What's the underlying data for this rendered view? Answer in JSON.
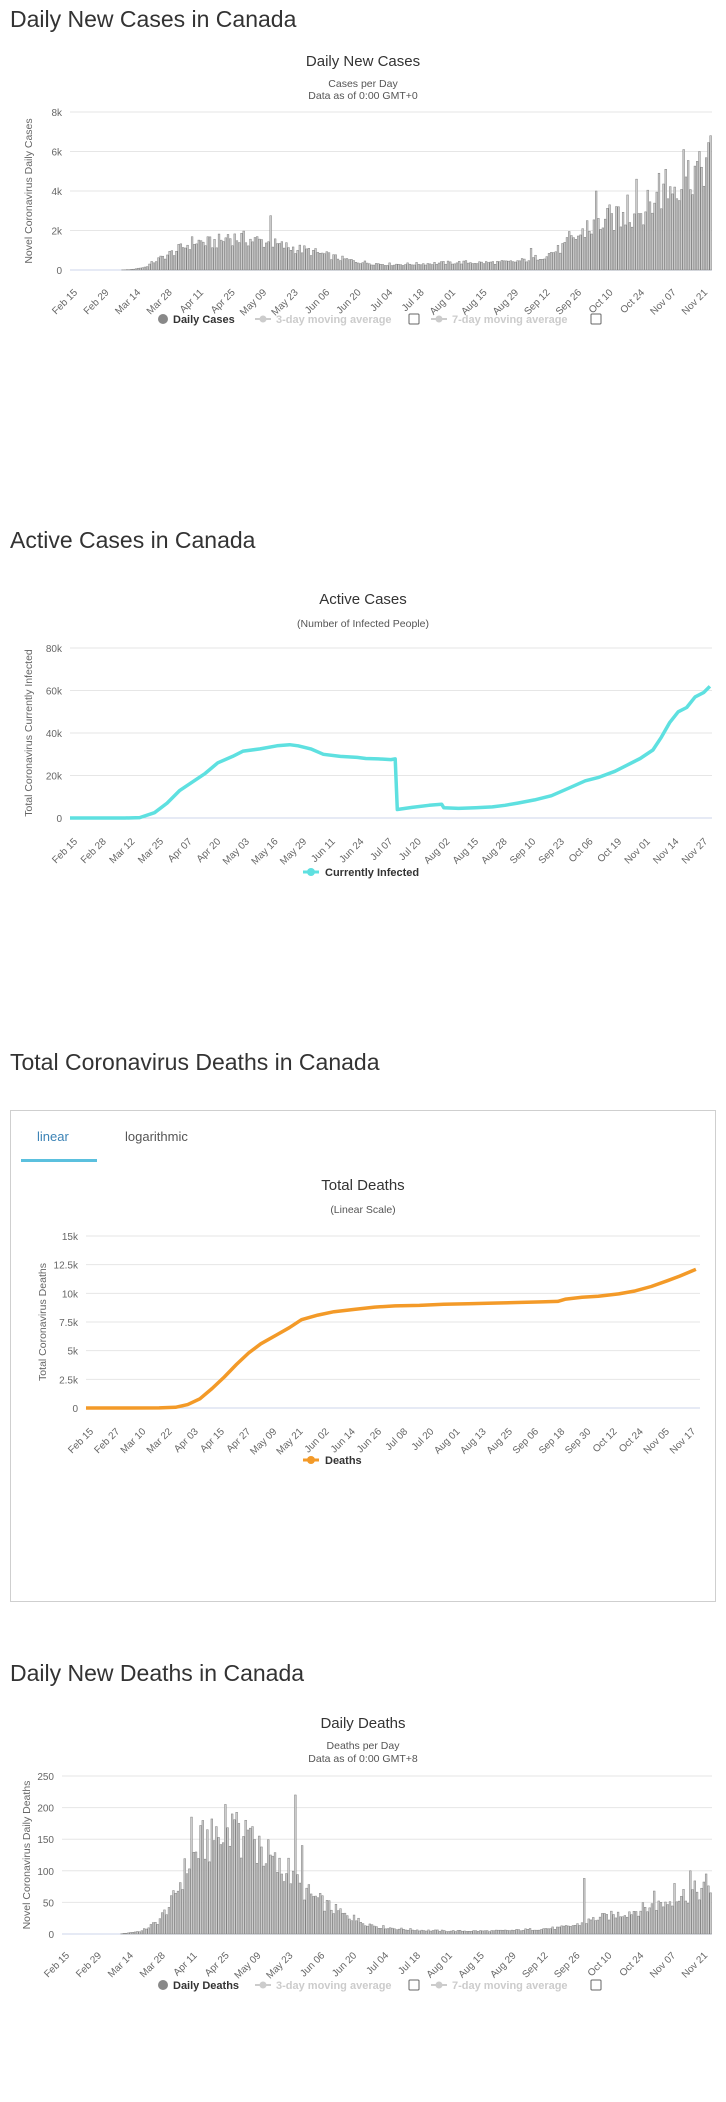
{
  "sections": [
    {
      "title": "Daily New Cases in Canada"
    },
    {
      "title": "Active Cases in Canada"
    },
    {
      "title": "Total Coronavirus Deaths in Canada"
    },
    {
      "title": "Daily New Deaths in Canada"
    }
  ],
  "tabs": {
    "linear": "linear",
    "logarithmic": "logarithmic"
  },
  "legend": {
    "daily_cases": "Daily Cases",
    "ma3": "3-day moving average",
    "ma7": "7-day moving average",
    "currently_infected": "Currently Infected",
    "deaths": "Deaths",
    "daily_deaths": "Daily Deaths"
  },
  "colors": {
    "bar_fill": "#cccccc",
    "bar_stroke": "#7f7f7f",
    "active_line": "#5ee0e0",
    "deaths_line": "#f39a28",
    "grid": "#e6e6e6",
    "tab_accent": "#5bc0de"
  },
  "chart_data": [
    {
      "type": "bar",
      "title": "Daily New Cases",
      "subtitle": "Cases per Day",
      "subtitle2": "Data as of 0:00 GMT+0",
      "ylabel": "Novel Coronavirus Daily Cases",
      "ylim": [
        0,
        8000
      ],
      "yticks": [
        0,
        2000,
        4000,
        6000,
        8000
      ],
      "ytick_labels": [
        "0",
        "2k",
        "4k",
        "6k",
        "8k"
      ],
      "xtick_labels": [
        "Feb 15",
        "Feb 29",
        "Mar 14",
        "Mar 28",
        "Apr 11",
        "Apr 25",
        "May 09",
        "May 23",
        "Jun 06",
        "Jun 20",
        "Jul 04",
        "Jul 18",
        "Aug 01",
        "Aug 15",
        "Aug 29",
        "Sep 12",
        "Sep 26",
        "Oct 10",
        "Oct 24",
        "Nov 07",
        "Nov 21"
      ],
      "keypoints": [
        [
          0,
          0
        ],
        [
          22,
          0
        ],
        [
          27,
          30
        ],
        [
          33,
          150
        ],
        [
          38,
          500
        ],
        [
          45,
          900
        ],
        [
          52,
          1300
        ],
        [
          55,
          1500
        ],
        [
          62,
          1400
        ],
        [
          66,
          1500
        ],
        [
          72,
          1700
        ],
        [
          79,
          1600
        ],
        [
          85,
          1500
        ],
        [
          92,
          1300
        ],
        [
          99,
          1150
        ],
        [
          106,
          1000
        ],
        [
          113,
          800
        ],
        [
          120,
          600
        ],
        [
          127,
          450
        ],
        [
          134,
          350
        ],
        [
          141,
          300
        ],
        [
          148,
          300
        ],
        [
          155,
          320
        ],
        [
          162,
          350
        ],
        [
          169,
          380
        ],
        [
          176,
          400
        ],
        [
          183,
          380
        ],
        [
          190,
          400
        ],
        [
          197,
          420
        ],
        [
          204,
          550
        ],
        [
          211,
          750
        ],
        [
          218,
          1100
        ],
        [
          225,
          1700
        ],
        [
          232,
          2200
        ],
        [
          239,
          2600
        ],
        [
          246,
          2700
        ],
        [
          253,
          3000
        ],
        [
          260,
          3600
        ],
        [
          267,
          4300
        ],
        [
          274,
          4900
        ],
        [
          281,
          5500
        ],
        [
          285,
          5800
        ]
      ],
      "spikes": [
        [
          70,
          1800
        ],
        [
          89,
          2750
        ],
        [
          205,
          1100
        ],
        [
          222,
          1950
        ],
        [
          230,
          2500
        ],
        [
          234,
          4000
        ],
        [
          240,
          3300
        ],
        [
          244,
          3200
        ],
        [
          248,
          3800
        ],
        [
          252,
          4600
        ],
        [
          262,
          4900
        ],
        [
          265,
          5100
        ],
        [
          273,
          6100
        ],
        [
          280,
          6000
        ]
      ],
      "legend": [
        "Daily Cases",
        "3-day moving average",
        "7-day moving average"
      ]
    },
    {
      "type": "line",
      "title": "Active Cases",
      "subtitle": "(Number of Infected People)",
      "ylabel": "Total Coronavirus Currently Infected",
      "ylim": [
        0,
        80000
      ],
      "yticks": [
        0,
        20000,
        40000,
        60000,
        80000
      ],
      "ytick_labels": [
        "0",
        "20k",
        "40k",
        "60k",
        "80k"
      ],
      "xtick_labels": [
        "Feb 15",
        "Feb 28",
        "Mar 12",
        "Mar 25",
        "Apr 07",
        "Apr 20",
        "May 03",
        "May 16",
        "May 29",
        "Jun 11",
        "Jun 24",
        "Jul 07",
        "Jul 20",
        "Aug 02",
        "Aug 15",
        "Aug 28",
        "Sep 10",
        "Sep 23",
        "Oct 06",
        "Oct 19",
        "Nov 01",
        "Nov 14",
        "Nov 27"
      ],
      "series": [
        {
          "name": "Currently Infected",
          "points": [
            [
              0,
              0
            ],
            [
              26,
              0
            ],
            [
              33,
              200
            ],
            [
              40,
              2500
            ],
            [
              46,
              7000
            ],
            [
              52,
              13000
            ],
            [
              58,
              17000
            ],
            [
              64,
              21000
            ],
            [
              70,
              26000
            ],
            [
              77,
              29000
            ],
            [
              82,
              31500
            ],
            [
              90,
              32500
            ],
            [
              98,
              34000
            ],
            [
              104,
              34500
            ],
            [
              108,
              34000
            ],
            [
              114,
              32500
            ],
            [
              120,
              30000
            ],
            [
              128,
              29000
            ],
            [
              136,
              28500
            ],
            [
              140,
              28000
            ],
            [
              146,
              27800
            ],
            [
              152,
              27500
            ],
            [
              154,
              27800
            ],
            [
              155,
              4000
            ],
            [
              162,
              5000
            ],
            [
              170,
              6000
            ],
            [
              176,
              6500
            ],
            [
              177,
              4800
            ],
            [
              184,
              4500
            ],
            [
              192,
              4800
            ],
            [
              200,
              5200
            ],
            [
              206,
              6000
            ],
            [
              212,
              7000
            ],
            [
              220,
              8500
            ],
            [
              228,
              10500
            ],
            [
              236,
              14000
            ],
            [
              244,
              17500
            ],
            [
              250,
              19000
            ],
            [
              258,
              22000
            ],
            [
              264,
              25000
            ],
            [
              270,
              28000
            ],
            [
              276,
              32000
            ],
            [
              280,
              38000
            ],
            [
              284,
              45000
            ],
            [
              288,
              50000
            ],
            [
              292,
              52000
            ],
            [
              296,
              57000
            ],
            [
              300,
              59000
            ],
            [
              303,
              62000
            ]
          ]
        }
      ],
      "legend": [
        "Currently Infected"
      ]
    },
    {
      "type": "line",
      "title": "Total Deaths",
      "subtitle": "(Linear Scale)",
      "ylabel": "Total Coronavirus Deaths",
      "ylim": [
        0,
        15000
      ],
      "yticks": [
        0,
        2500,
        5000,
        7500,
        10000,
        12500,
        15000
      ],
      "ytick_labels": [
        "0",
        "2.5k",
        "5k",
        "7.5k",
        "10k",
        "12.5k",
        "15k"
      ],
      "xtick_labels": [
        "Feb 15",
        "Feb 27",
        "Mar 10",
        "Mar 22",
        "Apr 03",
        "Apr 15",
        "Apr 27",
        "May 09",
        "May 21",
        "Jun 02",
        "Jun 14",
        "Jun 26",
        "Jul 08",
        "Jul 20",
        "Aug 01",
        "Aug 13",
        "Aug 25",
        "Sep 06",
        "Sep 18",
        "Sep 30",
        "Oct 12",
        "Oct 24",
        "Nov 05",
        "Nov 17"
      ],
      "series": [
        {
          "name": "Deaths",
          "points": [
            [
              0,
              0
            ],
            [
              36,
              5
            ],
            [
              44,
              60
            ],
            [
              50,
              300
            ],
            [
              56,
              800
            ],
            [
              62,
              1700
            ],
            [
              68,
              2700
            ],
            [
              74,
              3800
            ],
            [
              80,
              4800
            ],
            [
              86,
              5600
            ],
            [
              94,
              6400
            ],
            [
              100,
              7000
            ],
            [
              106,
              7700
            ],
            [
              114,
              8100
            ],
            [
              122,
              8400
            ],
            [
              132,
              8600
            ],
            [
              142,
              8800
            ],
            [
              152,
              8900
            ],
            [
              164,
              8950
            ],
            [
              176,
              9050
            ],
            [
              188,
              9100
            ],
            [
              200,
              9150
            ],
            [
              212,
              9200
            ],
            [
              224,
              9250
            ],
            [
              232,
              9300
            ],
            [
              236,
              9500
            ],
            [
              244,
              9650
            ],
            [
              252,
              9750
            ],
            [
              262,
              9950
            ],
            [
              270,
              10200
            ],
            [
              278,
              10600
            ],
            [
              286,
              11100
            ],
            [
              292,
              11500
            ],
            [
              298,
              11950
            ],
            [
              300,
              12100
            ]
          ]
        }
      ],
      "legend": [
        "Deaths"
      ]
    },
    {
      "type": "bar",
      "title": "Daily Deaths",
      "subtitle": "Deaths per Day",
      "subtitle2": "Data as of 0:00 GMT+8",
      "ylabel": "Novel Coronavirus Daily Deaths",
      "ylim": [
        0,
        250
      ],
      "yticks": [
        0,
        50,
        100,
        150,
        200,
        250
      ],
      "ytick_labels": [
        "0",
        "50",
        "100",
        "150",
        "200",
        "250"
      ],
      "xtick_labels": [
        "Feb 15",
        "Feb 29",
        "Mar 14",
        "Mar 28",
        "Apr 11",
        "Apr 25",
        "May 09",
        "May 23",
        "Jun 06",
        "Jun 20",
        "Jul 04",
        "Jul 18",
        "Aug 01",
        "Aug 15",
        "Aug 29",
        "Sep 12",
        "Sep 26",
        "Oct 10",
        "Oct 24",
        "Nov 07",
        "Nov 21"
      ],
      "keypoints": [
        [
          0,
          0
        ],
        [
          25,
          0
        ],
        [
          35,
          5
        ],
        [
          42,
          20
        ],
        [
          48,
          50
        ],
        [
          55,
          110
        ],
        [
          62,
          150
        ],
        [
          70,
          150
        ],
        [
          76,
          160
        ],
        [
          82,
          155
        ],
        [
          90,
          130
        ],
        [
          97,
          100
        ],
        [
          104,
          80
        ],
        [
          111,
          60
        ],
        [
          118,
          45
        ],
        [
          125,
          30
        ],
        [
          132,
          20
        ],
        [
          140,
          12
        ],
        [
          150,
          8
        ],
        [
          160,
          6
        ],
        [
          170,
          5
        ],
        [
          180,
          5
        ],
        [
          190,
          5
        ],
        [
          200,
          6
        ],
        [
          210,
          8
        ],
        [
          220,
          10
        ],
        [
          228,
          15
        ],
        [
          236,
          25
        ],
        [
          246,
          32
        ],
        [
          256,
          40
        ],
        [
          266,
          50
        ],
        [
          276,
          65
        ],
        [
          286,
          75
        ]
      ],
      "spikes": [
        [
          57,
          185
        ],
        [
          64,
          165
        ],
        [
          68,
          170
        ],
        [
          72,
          205
        ],
        [
          75,
          190
        ],
        [
          78,
          175
        ],
        [
          81,
          180
        ],
        [
          84,
          170
        ],
        [
          87,
          155
        ],
        [
          96,
          120
        ],
        [
          100,
          120
        ],
        [
          103,
          220
        ],
        [
          106,
          140
        ],
        [
          112,
          60
        ],
        [
          123,
          40
        ],
        [
          129,
          30
        ],
        [
          231,
          88
        ],
        [
          262,
          68
        ],
        [
          271,
          80
        ],
        [
          278,
          100
        ],
        [
          285,
          95
        ]
      ],
      "legend": [
        "Daily Deaths",
        "3-day moving average",
        "7-day moving average"
      ]
    }
  ]
}
